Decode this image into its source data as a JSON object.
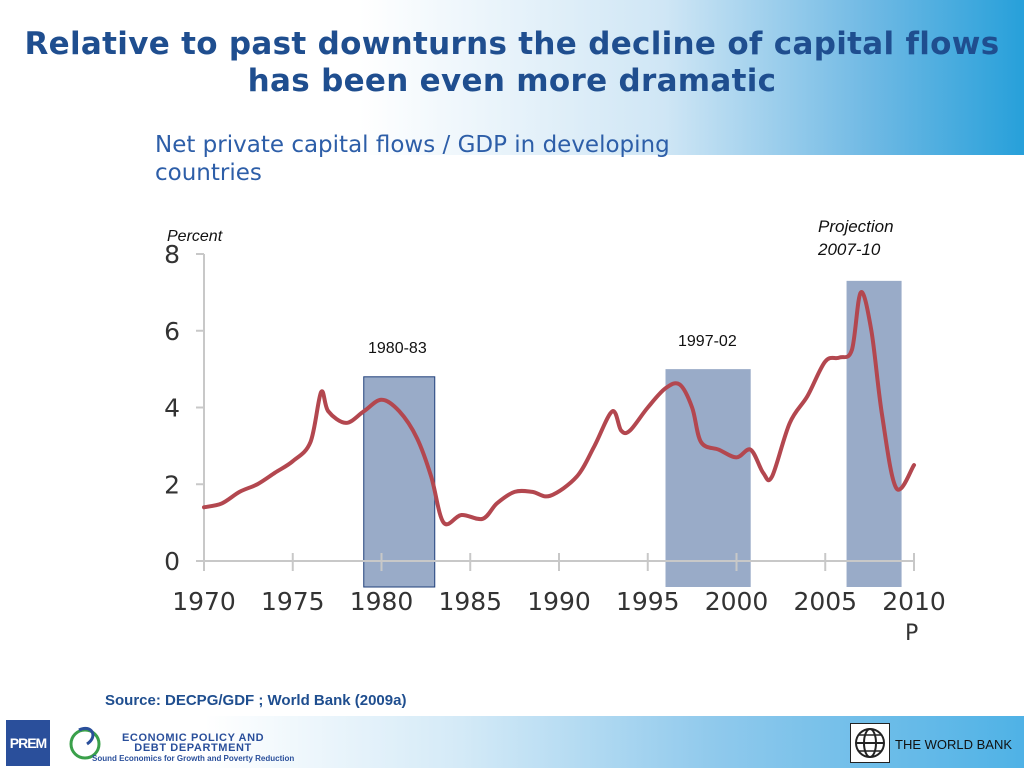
{
  "slide": {
    "title": "Relative to past downturns the decline of capital flows has been even more dramatic",
    "subtitle": "Net private capital flows / GDP in developing countries",
    "source": "Source: DECPG/GDF ; World Bank (2009a)"
  },
  "footer": {
    "prem_logo_text": "PREM",
    "dept_line1": "ECONOMIC POLICY AND",
    "dept_line2": "DEBT DEPARTMENT",
    "tagline": "Sound Economics for Growth and Poverty Reduction",
    "worldbank": "THE WORLD BANK"
  },
  "colors": {
    "title": "#1f4e8f",
    "line": "#b3474f",
    "band": "#7c93b8"
  },
  "chart_data": {
    "type": "line",
    "title": "Net private capital flows / GDP in developing countries",
    "ylabel": "Percent",
    "xlabel": "",
    "ylim": [
      0,
      8
    ],
    "xlim": [
      1970,
      2010
    ],
    "yticks": [
      "0",
      "2",
      "4",
      "6",
      "8"
    ],
    "xticks": [
      {
        "v": 1970,
        "label": "1970"
      },
      {
        "v": 1975,
        "label": "1975"
      },
      {
        "v": 1980,
        "label": "1980"
      },
      {
        "v": 1985,
        "label": "1985"
      },
      {
        "v": 1990,
        "label": "1990"
      },
      {
        "v": 1995,
        "label": "1995"
      },
      {
        "v": 2000,
        "label": "2000"
      },
      {
        "v": 2005,
        "label": "2005"
      },
      {
        "v": 2010,
        "label": "2010"
      }
    ],
    "projection_marker": "P",
    "series": [
      {
        "name": "Net private capital flows / GDP",
        "x": [
          1970,
          1971,
          1972,
          1973,
          1974,
          1975,
          1976,
          1976.6,
          1977,
          1978,
          1979,
          1980,
          1981,
          1982,
          1982.8,
          1983.5,
          1984.5,
          1985.7,
          1986.5,
          1987.5,
          1988.5,
          1989.5,
          1991,
          1992,
          1993,
          1993.5,
          1994,
          1995,
          1996,
          1996.8,
          1997.5,
          1998,
          1999,
          2000,
          2000.8,
          2001.5,
          2002,
          2003,
          2004,
          2005,
          2005.8,
          2006.5,
          2007,
          2007.6,
          2008.2,
          2009,
          2010
        ],
        "y": [
          1.4,
          1.5,
          1.8,
          2.0,
          2.3,
          2.6,
          3.1,
          4.4,
          3.9,
          3.6,
          3.9,
          4.2,
          3.9,
          3.2,
          2.2,
          1.0,
          1.2,
          1.1,
          1.5,
          1.8,
          1.8,
          1.7,
          2.2,
          3.0,
          3.9,
          3.4,
          3.4,
          4.0,
          4.5,
          4.6,
          4.0,
          3.1,
          2.9,
          2.7,
          2.9,
          2.3,
          2.2,
          3.6,
          4.3,
          5.2,
          5.3,
          5.5,
          7.0,
          6.0,
          3.8,
          1.9,
          2.5
        ]
      }
    ],
    "shaded_periods": [
      {
        "label": "1980-83",
        "start": 1979.0,
        "end": 1983.0,
        "top": 4.8
      },
      {
        "label": "1997-02",
        "start": 1996.0,
        "end": 2000.8,
        "top": 5.0
      },
      {
        "label": "Projection 2007-10",
        "start": 2006.2,
        "end": 2009.3,
        "top": 7.3
      }
    ],
    "annotations": {
      "period1": "1980-83",
      "period2": "1997-02",
      "projection_line1": "Projection",
      "projection_line2": "2007-10"
    }
  }
}
